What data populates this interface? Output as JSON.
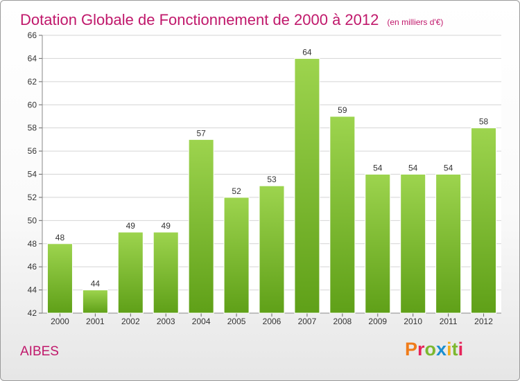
{
  "title": "Dotation Globale de Fonctionnement de 2000 à 2012",
  "subtitle": "(en milliers d'€)",
  "commune": "AIBES",
  "logo_text": "Proxiti",
  "colors": {
    "title": "#c0186b",
    "bar_top": "#9dd44e",
    "bar_bottom": "#5fa018",
    "grid": "#d4d4d4"
  },
  "chart_data": {
    "type": "bar",
    "title": "Dotation Globale de Fonctionnement de 2000 à 2012",
    "subtitle": "(en milliers d'€)",
    "xlabel": "",
    "ylabel": "",
    "categories": [
      "2000",
      "2001",
      "2002",
      "2003",
      "2004",
      "2005",
      "2006",
      "2007",
      "2008",
      "2009",
      "2010",
      "2011",
      "2012"
    ],
    "values": [
      48,
      44,
      49,
      49,
      57,
      52,
      53,
      64,
      59,
      54,
      54,
      54,
      58
    ],
    "ylim": [
      42,
      66
    ],
    "yticks": [
      42,
      44,
      46,
      48,
      50,
      52,
      54,
      56,
      58,
      60,
      62,
      64,
      66
    ],
    "grid": true,
    "legend": "none"
  }
}
